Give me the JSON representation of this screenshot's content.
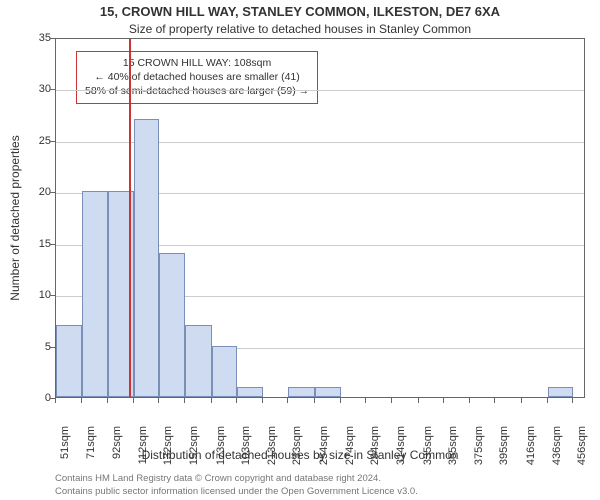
{
  "title_main": "15, CROWN HILL WAY, STANLEY COMMON, ILKESTON, DE7 6XA",
  "title_sub": "Size of property relative to detached houses in Stanley Common",
  "y_axis_label": "Number of detached properties",
  "x_axis_label": "Distribution of detached houses by size in Stanley Common",
  "footer_line1": "Contains HM Land Registry data © Crown copyright and database right 2024.",
  "footer_line2": "Contains public sector information licensed under the Open Government Licence v3.0.",
  "annotation": {
    "line1": "15 CROWN HILL WAY: 108sqm",
    "line2": "← 40% of detached houses are smaller (41)",
    "line3": "58% of semi-detached houses are larger (59) →"
  },
  "chart": {
    "type": "histogram",
    "ylim": [
      0,
      35
    ],
    "ytick_step": 5,
    "yticks": [
      0,
      5,
      10,
      15,
      20,
      25,
      30,
      35
    ],
    "xlim": [
      51,
      466
    ],
    "xticks": [
      51,
      71,
      92,
      112,
      132,
      152,
      173,
      193,
      213,
      233,
      254,
      274,
      294,
      314,
      335,
      355,
      375,
      395,
      416,
      436,
      456
    ],
    "xtick_suffix": "sqm",
    "bar_color": "#cfdbf0",
    "bar_border": "#7a8fb8",
    "grid_color": "#cccccc",
    "axis_color": "#666666",
    "background_color": "#ffffff",
    "marker_color": "#cc3333",
    "marker_value": 108,
    "bars": [
      {
        "x0": 51,
        "x1": 71,
        "y": 7
      },
      {
        "x0": 71,
        "x1": 92,
        "y": 20
      },
      {
        "x0": 92,
        "x1": 112,
        "y": 20
      },
      {
        "x0": 112,
        "x1": 132,
        "y": 27
      },
      {
        "x0": 132,
        "x1": 152,
        "y": 14
      },
      {
        "x0": 152,
        "x1": 173,
        "y": 7
      },
      {
        "x0": 173,
        "x1": 193,
        "y": 5
      },
      {
        "x0": 193,
        "x1": 213,
        "y": 1
      },
      {
        "x0": 213,
        "x1": 233,
        "y": 0
      },
      {
        "x0": 233,
        "x1": 254,
        "y": 1
      },
      {
        "x0": 254,
        "x1": 274,
        "y": 1
      },
      {
        "x0": 274,
        "x1": 294,
        "y": 0
      },
      {
        "x0": 294,
        "x1": 314,
        "y": 0
      },
      {
        "x0": 314,
        "x1": 335,
        "y": 0
      },
      {
        "x0": 335,
        "x1": 355,
        "y": 0
      },
      {
        "x0": 355,
        "x1": 375,
        "y": 0
      },
      {
        "x0": 375,
        "x1": 395,
        "y": 0
      },
      {
        "x0": 395,
        "x1": 416,
        "y": 0
      },
      {
        "x0": 416,
        "x1": 436,
        "y": 0
      },
      {
        "x0": 436,
        "x1": 456,
        "y": 1
      }
    ]
  }
}
